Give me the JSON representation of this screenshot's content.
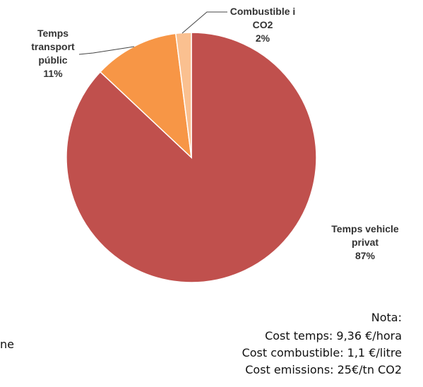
{
  "chart_data": {
    "type": "pie",
    "categories": [
      "Temps vehicle privat",
      "Temps transport públic",
      "Combustible i CO2"
    ],
    "values": [
      87,
      11,
      2
    ],
    "value_labels": [
      "87%",
      "11%",
      "2%"
    ],
    "colors": [
      "#c0504d",
      "#f79646",
      "#fac090"
    ]
  },
  "notes": [
    "Nota:",
    "Cost temps: 9,36 €/hora",
    "Cost combustible: 1,1 €/litre",
    "Cost emissions: 25€/tn CO2"
  ],
  "fragment": "ne"
}
